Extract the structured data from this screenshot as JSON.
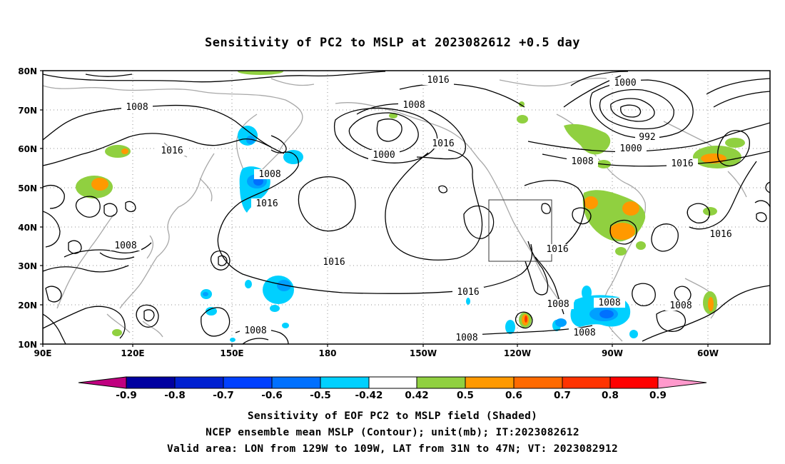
{
  "title": "Sensitivity of PC2 to MSLP at 2023082612 +0.5 day",
  "lat_labels": [
    "80N",
    "70N",
    "60N",
    "50N",
    "40N",
    "30N",
    "20N",
    "10N"
  ],
  "lon_labels": [
    "90E",
    "120E",
    "150E",
    "180",
    "150W",
    "120W",
    "90W",
    "60W"
  ],
  "contour_labels": [
    {
      "id": "c1",
      "text": "1016"
    },
    {
      "id": "c2",
      "text": "1008"
    },
    {
      "id": "c3",
      "text": "1016"
    },
    {
      "id": "c4",
      "text": "1008"
    },
    {
      "id": "c5",
      "text": "1016"
    },
    {
      "id": "c6",
      "text": "1000"
    },
    {
      "id": "c7",
      "text": "1008"
    },
    {
      "id": "c8",
      "text": "1016"
    },
    {
      "id": "c9",
      "text": "1000"
    },
    {
      "id": "c10",
      "text": "992"
    },
    {
      "id": "c11",
      "text": "1000"
    },
    {
      "id": "c12",
      "text": "1008"
    },
    {
      "id": "c13",
      "text": "1016"
    },
    {
      "id": "c14",
      "text": "1016"
    },
    {
      "id": "c15",
      "text": "1008"
    },
    {
      "id": "c16",
      "text": "1016"
    },
    {
      "id": "c17",
      "text": "1016"
    },
    {
      "id": "c18",
      "text": "1016"
    },
    {
      "id": "c19",
      "text": "1008"
    },
    {
      "id": "c20",
      "text": "1008"
    },
    {
      "id": "c21",
      "text": "1008"
    },
    {
      "id": "c22",
      "text": "1008"
    },
    {
      "id": "c23",
      "text": "1008"
    },
    {
      "id": "c24",
      "text": "1008"
    }
  ],
  "colorbar": {
    "labels": [
      "-0.9",
      "-0.8",
      "-0.7",
      "-0.6",
      "-0.5",
      "-0.42",
      "0.42",
      "0.5",
      "0.6",
      "0.7",
      "0.8",
      "0.9"
    ],
    "colors": [
      "#c00080",
      "#0000a0",
      "#0020d0",
      "#0040ff",
      "#0070ff",
      "#00a0ff",
      "#00d0ff",
      "#ffffff",
      "#90d040",
      "#ff9900",
      "#ff6a00",
      "#ff3300",
      "#ff0000",
      "#ff99cc"
    ]
  },
  "footer": {
    "line1": "Sensitivity of EOF PC2 to MSLP field (Shaded)",
    "line2": "NCEP ensemble mean MSLP (Contour); unit(mb); IT:2023082612",
    "line3": "Valid area: LON from 129W to 109W, LAT from 31N to 47N; VT: 2023082912"
  }
}
